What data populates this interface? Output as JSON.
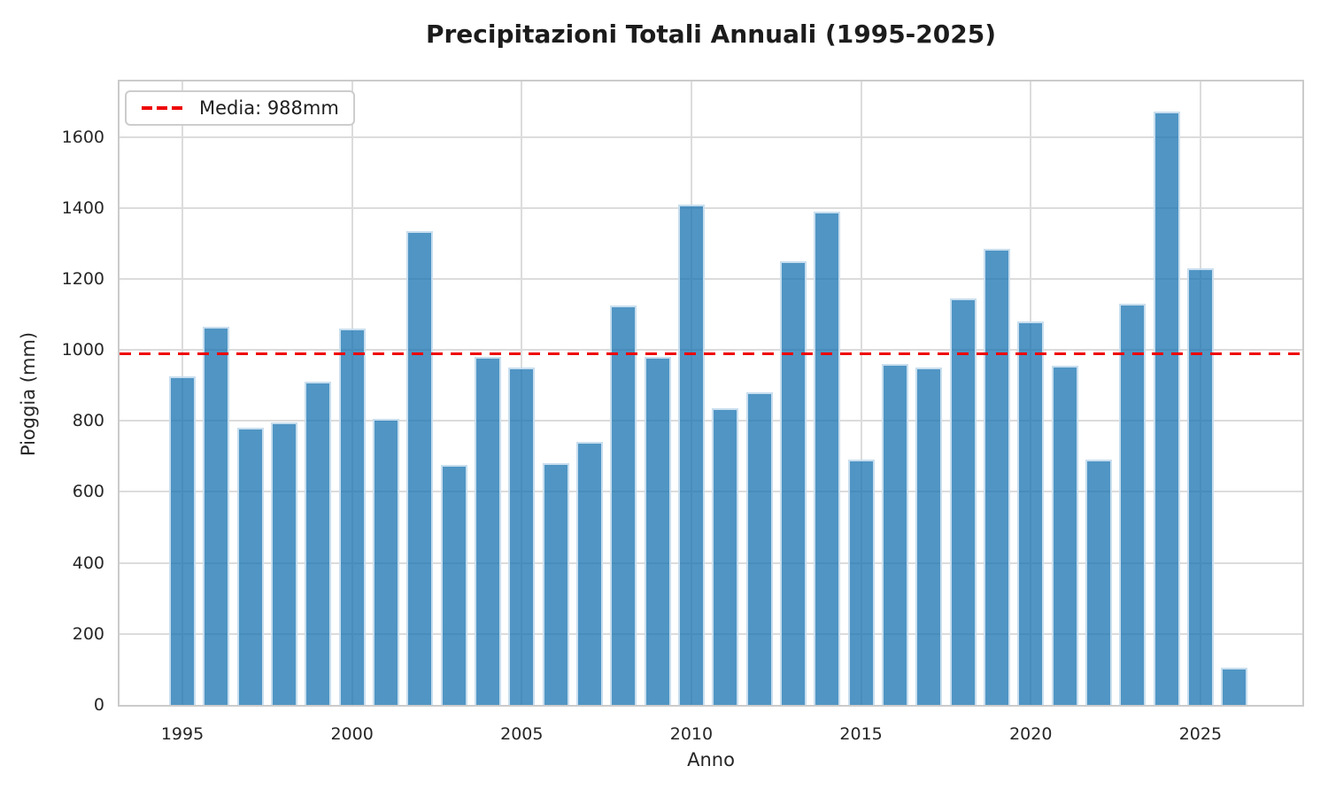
{
  "title": "Precipitazioni Totali Annuali (1995-2025)",
  "legend": {
    "label": "Media: 988mm"
  },
  "chart_data": {
    "type": "bar",
    "title": "Precipitazioni Totali Annuali (1995-2025)",
    "xlabel": "Anno",
    "ylabel": "Pioggia (mm)",
    "x": [
      1995,
      1996,
      1997,
      1998,
      1999,
      2000,
      2001,
      2002,
      2003,
      2004,
      2005,
      2006,
      2007,
      2008,
      2009,
      2010,
      2011,
      2012,
      2013,
      2014,
      2015,
      2016,
      2017,
      2018,
      2019,
      2020,
      2021,
      2022,
      2023,
      2024,
      2025,
      2026
    ],
    "values": [
      925,
      1065,
      780,
      795,
      910,
      1060,
      805,
      1335,
      675,
      980,
      950,
      680,
      740,
      1125,
      980,
      1410,
      835,
      880,
      1250,
      1390,
      690,
      960,
      950,
      1145,
      1285,
      1080,
      955,
      690,
      1130,
      1670,
      1230,
      105
    ],
    "series_name": "Pioggia (mm)",
    "mean_line": {
      "value": 988,
      "label": "Media: 988mm",
      "color": "#ee0000",
      "style": "dashed"
    },
    "ylim": [
      0,
      1756
    ],
    "yticks": [
      0,
      200,
      400,
      600,
      800,
      1000,
      1200,
      1400,
      1600
    ],
    "xticks": [
      1995,
      2000,
      2005,
      2010,
      2015,
      2020,
      2025
    ],
    "grid": true,
    "legend_position": "upper left",
    "bar_color": "#5095C4",
    "bar_fill_rgba": "rgba(31,119,180,0.78)",
    "bar_edge_color": "#cfe2f0",
    "grid_color": "#dcdcdc",
    "text_color": "#262626"
  }
}
